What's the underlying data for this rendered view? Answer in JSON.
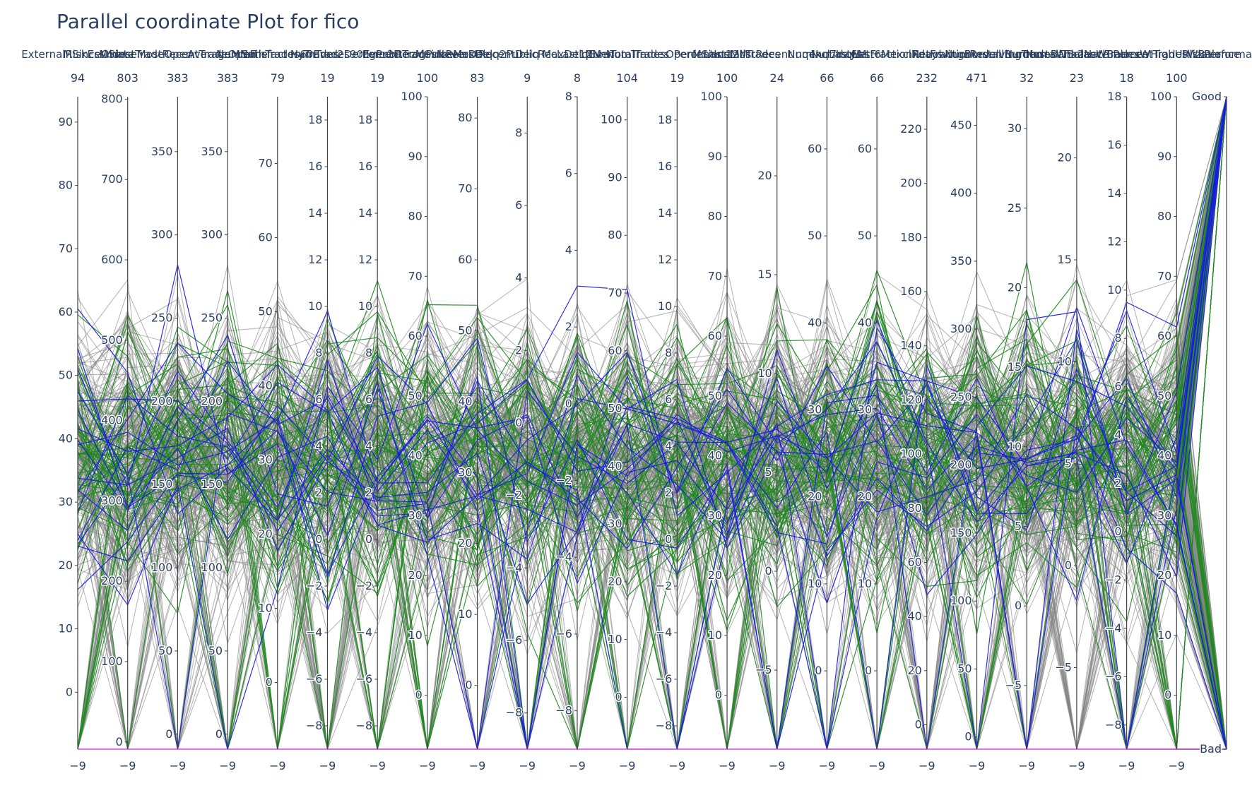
{
  "chart_data": {
    "type": "parallel_coordinates",
    "title": "Parallel coordinate Plot for fico",
    "dimensions": [
      {
        "name": "ExternalRiskEstimate",
        "range": [
          -9,
          94
        ],
        "ticks": [
          0,
          10,
          20,
          30,
          40,
          50,
          60,
          70,
          80,
          90
        ]
      },
      {
        "name": "MSinceOldestTradeOpen",
        "range": [
          -9,
          803
        ],
        "ticks": [
          0,
          100,
          200,
          300,
          400,
          500,
          600,
          700,
          800
        ]
      },
      {
        "name": "MSinceMostRecentTradeOpen",
        "range": [
          -9,
          383
        ],
        "ticks": [
          0,
          50,
          100,
          150,
          200,
          250,
          300,
          350
        ]
      },
      {
        "name": "AverageMInFile",
        "range": [
          -9,
          383
        ],
        "ticks": [
          0,
          50,
          100,
          150,
          200,
          250,
          300,
          350
        ]
      },
      {
        "name": "NumSatisfactoryTrades",
        "range": [
          -9,
          79
        ],
        "ticks": [
          0,
          10,
          20,
          30,
          40,
          50,
          60,
          70
        ]
      },
      {
        "name": "NumTrades60Ever2DerogPubRec",
        "range": [
          -9,
          19
        ],
        "ticks": [
          -8,
          -6,
          -4,
          -2,
          0,
          2,
          4,
          6,
          8,
          10,
          12,
          14,
          16,
          18
        ]
      },
      {
        "name": "NumTrades90Ever2DerogPubRec",
        "range": [
          -9,
          19
        ],
        "ticks": [
          -8,
          -6,
          -4,
          -2,
          0,
          2,
          4,
          6,
          8,
          10,
          12,
          14,
          16,
          18
        ]
      },
      {
        "name": "PercentTradesNeverDelq",
        "range": [
          -9,
          100
        ],
        "ticks": [
          0,
          10,
          20,
          30,
          40,
          50,
          60,
          70,
          80,
          90,
          100
        ]
      },
      {
        "name": "MSinceMostRecentDelq",
        "range": [
          -9,
          83
        ],
        "ticks": [
          0,
          10,
          20,
          30,
          40,
          50,
          60,
          70,
          80
        ]
      },
      {
        "name": "MaxDelq2PublicRecLast12M",
        "range": [
          -9,
          9
        ],
        "ticks": [
          -8,
          -6,
          -4,
          -2,
          0,
          2,
          4,
          6,
          8
        ]
      },
      {
        "name": "MaxDelqEver",
        "range": [
          -9,
          8
        ],
        "ticks": [
          -8,
          -6,
          -4,
          -2,
          0,
          2,
          4,
          6,
          8
        ]
      },
      {
        "name": "NumTotalTrades",
        "range": [
          -9,
          104
        ],
        "ticks": [
          0,
          10,
          20,
          30,
          40,
          50,
          60,
          70,
          80,
          90,
          100
        ]
      },
      {
        "name": "NumTradesOpeninLast12M",
        "range": [
          -9,
          19
        ],
        "ticks": [
          -8,
          -6,
          -4,
          -2,
          0,
          2,
          4,
          6,
          8,
          10,
          12,
          14,
          16,
          18
        ]
      },
      {
        "name": "PercentInstallTrades",
        "range": [
          -9,
          100
        ],
        "ticks": [
          0,
          10,
          20,
          30,
          40,
          50,
          60,
          70,
          80,
          90,
          100
        ]
      },
      {
        "name": "MSinceMostRecentInqexcl7days",
        "range": [
          -9,
          24
        ],
        "ticks": [
          -5,
          0,
          5,
          10,
          15,
          20
        ]
      },
      {
        "name": "NumInqLast6M",
        "range": [
          -9,
          66
        ],
        "ticks": [
          0,
          10,
          20,
          30,
          40,
          50,
          60
        ]
      },
      {
        "name": "NumInqLast6Mexcl7days",
        "range": [
          -9,
          66
        ],
        "ticks": [
          0,
          10,
          20,
          30,
          40,
          50,
          60
        ]
      },
      {
        "name": "NetFractionRevolvingBurden",
        "range": [
          -9,
          232
        ],
        "ticks": [
          0,
          20,
          40,
          60,
          80,
          100,
          120,
          140,
          160,
          180,
          200,
          220
        ]
      },
      {
        "name": "NetFractionInstallBurden",
        "range": [
          -9,
          471
        ],
        "ticks": [
          0,
          50,
          100,
          150,
          200,
          250,
          300,
          350,
          400,
          450
        ]
      },
      {
        "name": "NumRevolvingTradesWBalance",
        "range": [
          -9,
          32
        ],
        "ticks": [
          -5,
          0,
          5,
          10,
          15,
          20,
          25,
          30
        ]
      },
      {
        "name": "NumInstallTradesWBalance",
        "range": [
          -9,
          23
        ],
        "ticks": [
          -5,
          0,
          5,
          10,
          15,
          20
        ]
      },
      {
        "name": "NumBank2NatlTradesWHighUtilization",
        "range": [
          -9,
          18
        ],
        "ticks": [
          -8,
          -6,
          -4,
          -2,
          0,
          2,
          4,
          6,
          8,
          10,
          12,
          14,
          16,
          18
        ]
      },
      {
        "name": "PercentTradesWBalance",
        "range": [
          -9,
          100
        ],
        "ticks": [
          0,
          10,
          20,
          30,
          40,
          50,
          60,
          70,
          80,
          90,
          100
        ]
      },
      {
        "name": "RiskPerformance",
        "categorical": true,
        "categories": [
          "Bad",
          "Good"
        ]
      }
    ],
    "line_groups": [
      {
        "color": "#808080"
      },
      {
        "color": "#1f8a1f"
      },
      {
        "color": "#1a1ae6"
      },
      {
        "color": "#e040e0"
      }
    ]
  }
}
